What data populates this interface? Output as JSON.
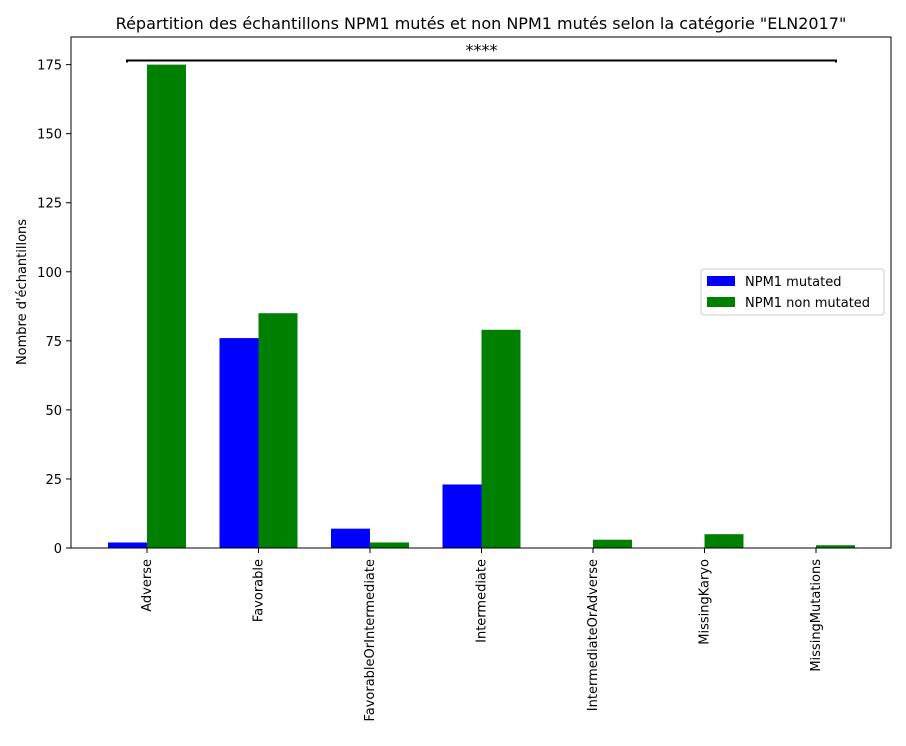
{
  "chart_data": {
    "type": "bar",
    "title": "Répartition des échantillons NPM1 mutés et non NPM1 mutés selon la catégorie \"ELN2017\"",
    "xlabel": "",
    "ylabel": "Nombre d'échantillons",
    "categories": [
      "Adverse",
      "Favorable",
      "FavorableOrIntermediate",
      "Intermediate",
      "IntermediateOrAdverse",
      "MissingKaryo",
      "MissingMutations"
    ],
    "series": [
      {
        "name": "NPM1 mutated",
        "color": "#0000ff",
        "values": [
          2,
          76,
          7,
          23,
          0,
          0,
          0
        ]
      },
      {
        "name": "NPM1 non mutated",
        "color": "#008000",
        "values": [
          175,
          85,
          2,
          79,
          3,
          5,
          1
        ]
      }
    ],
    "ylim": [
      0,
      185
    ],
    "yticks": [
      0,
      25,
      50,
      75,
      100,
      125,
      150,
      175
    ],
    "grid": false,
    "legend_position": "center-right",
    "annotation": {
      "text": "****",
      "from_category": "Adverse",
      "to_category": "MissingMutations",
      "y": 176.5
    }
  }
}
